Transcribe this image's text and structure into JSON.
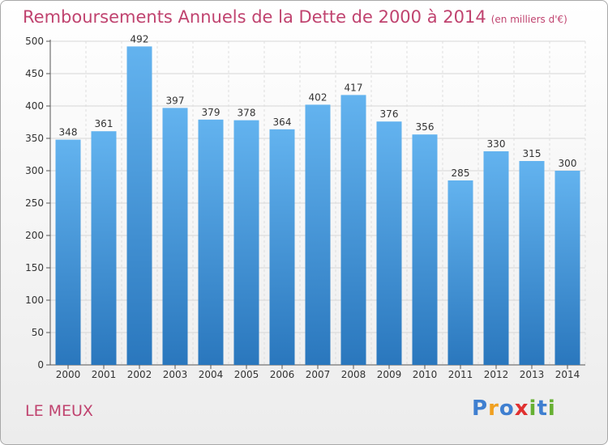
{
  "title": "Remboursements Annuels de la Dette de 2000 à 2014",
  "unit_note": "(en milliers d'€)",
  "commune": "LE MEUX",
  "brand": {
    "letters": [
      "P",
      "r",
      "o",
      "x",
      "i",
      "t",
      "i"
    ],
    "colors": [
      "#3f7fd0",
      "#f0a020",
      "#3f7fd0",
      "#e03030",
      "#66b032",
      "#3f7fd0",
      "#66b032"
    ]
  },
  "colors": {
    "accent": "#c0436f",
    "bar_top": "#63b3ef",
    "bar_bottom": "#2a77bd",
    "axis": "#555555"
  },
  "chart_data": {
    "type": "bar",
    "categories": [
      "2000",
      "2001",
      "2002",
      "2003",
      "2004",
      "2005",
      "2006",
      "2007",
      "2008",
      "2009",
      "2010",
      "2011",
      "2012",
      "2013",
      "2014"
    ],
    "values": [
      348,
      361,
      492,
      397,
      379,
      378,
      364,
      402,
      417,
      376,
      356,
      285,
      330,
      315,
      300
    ],
    "ylim": [
      0,
      500
    ],
    "yticks": [
      0,
      50,
      100,
      150,
      200,
      250,
      300,
      350,
      400,
      450,
      500
    ],
    "grid": true,
    "data_labels": true
  }
}
